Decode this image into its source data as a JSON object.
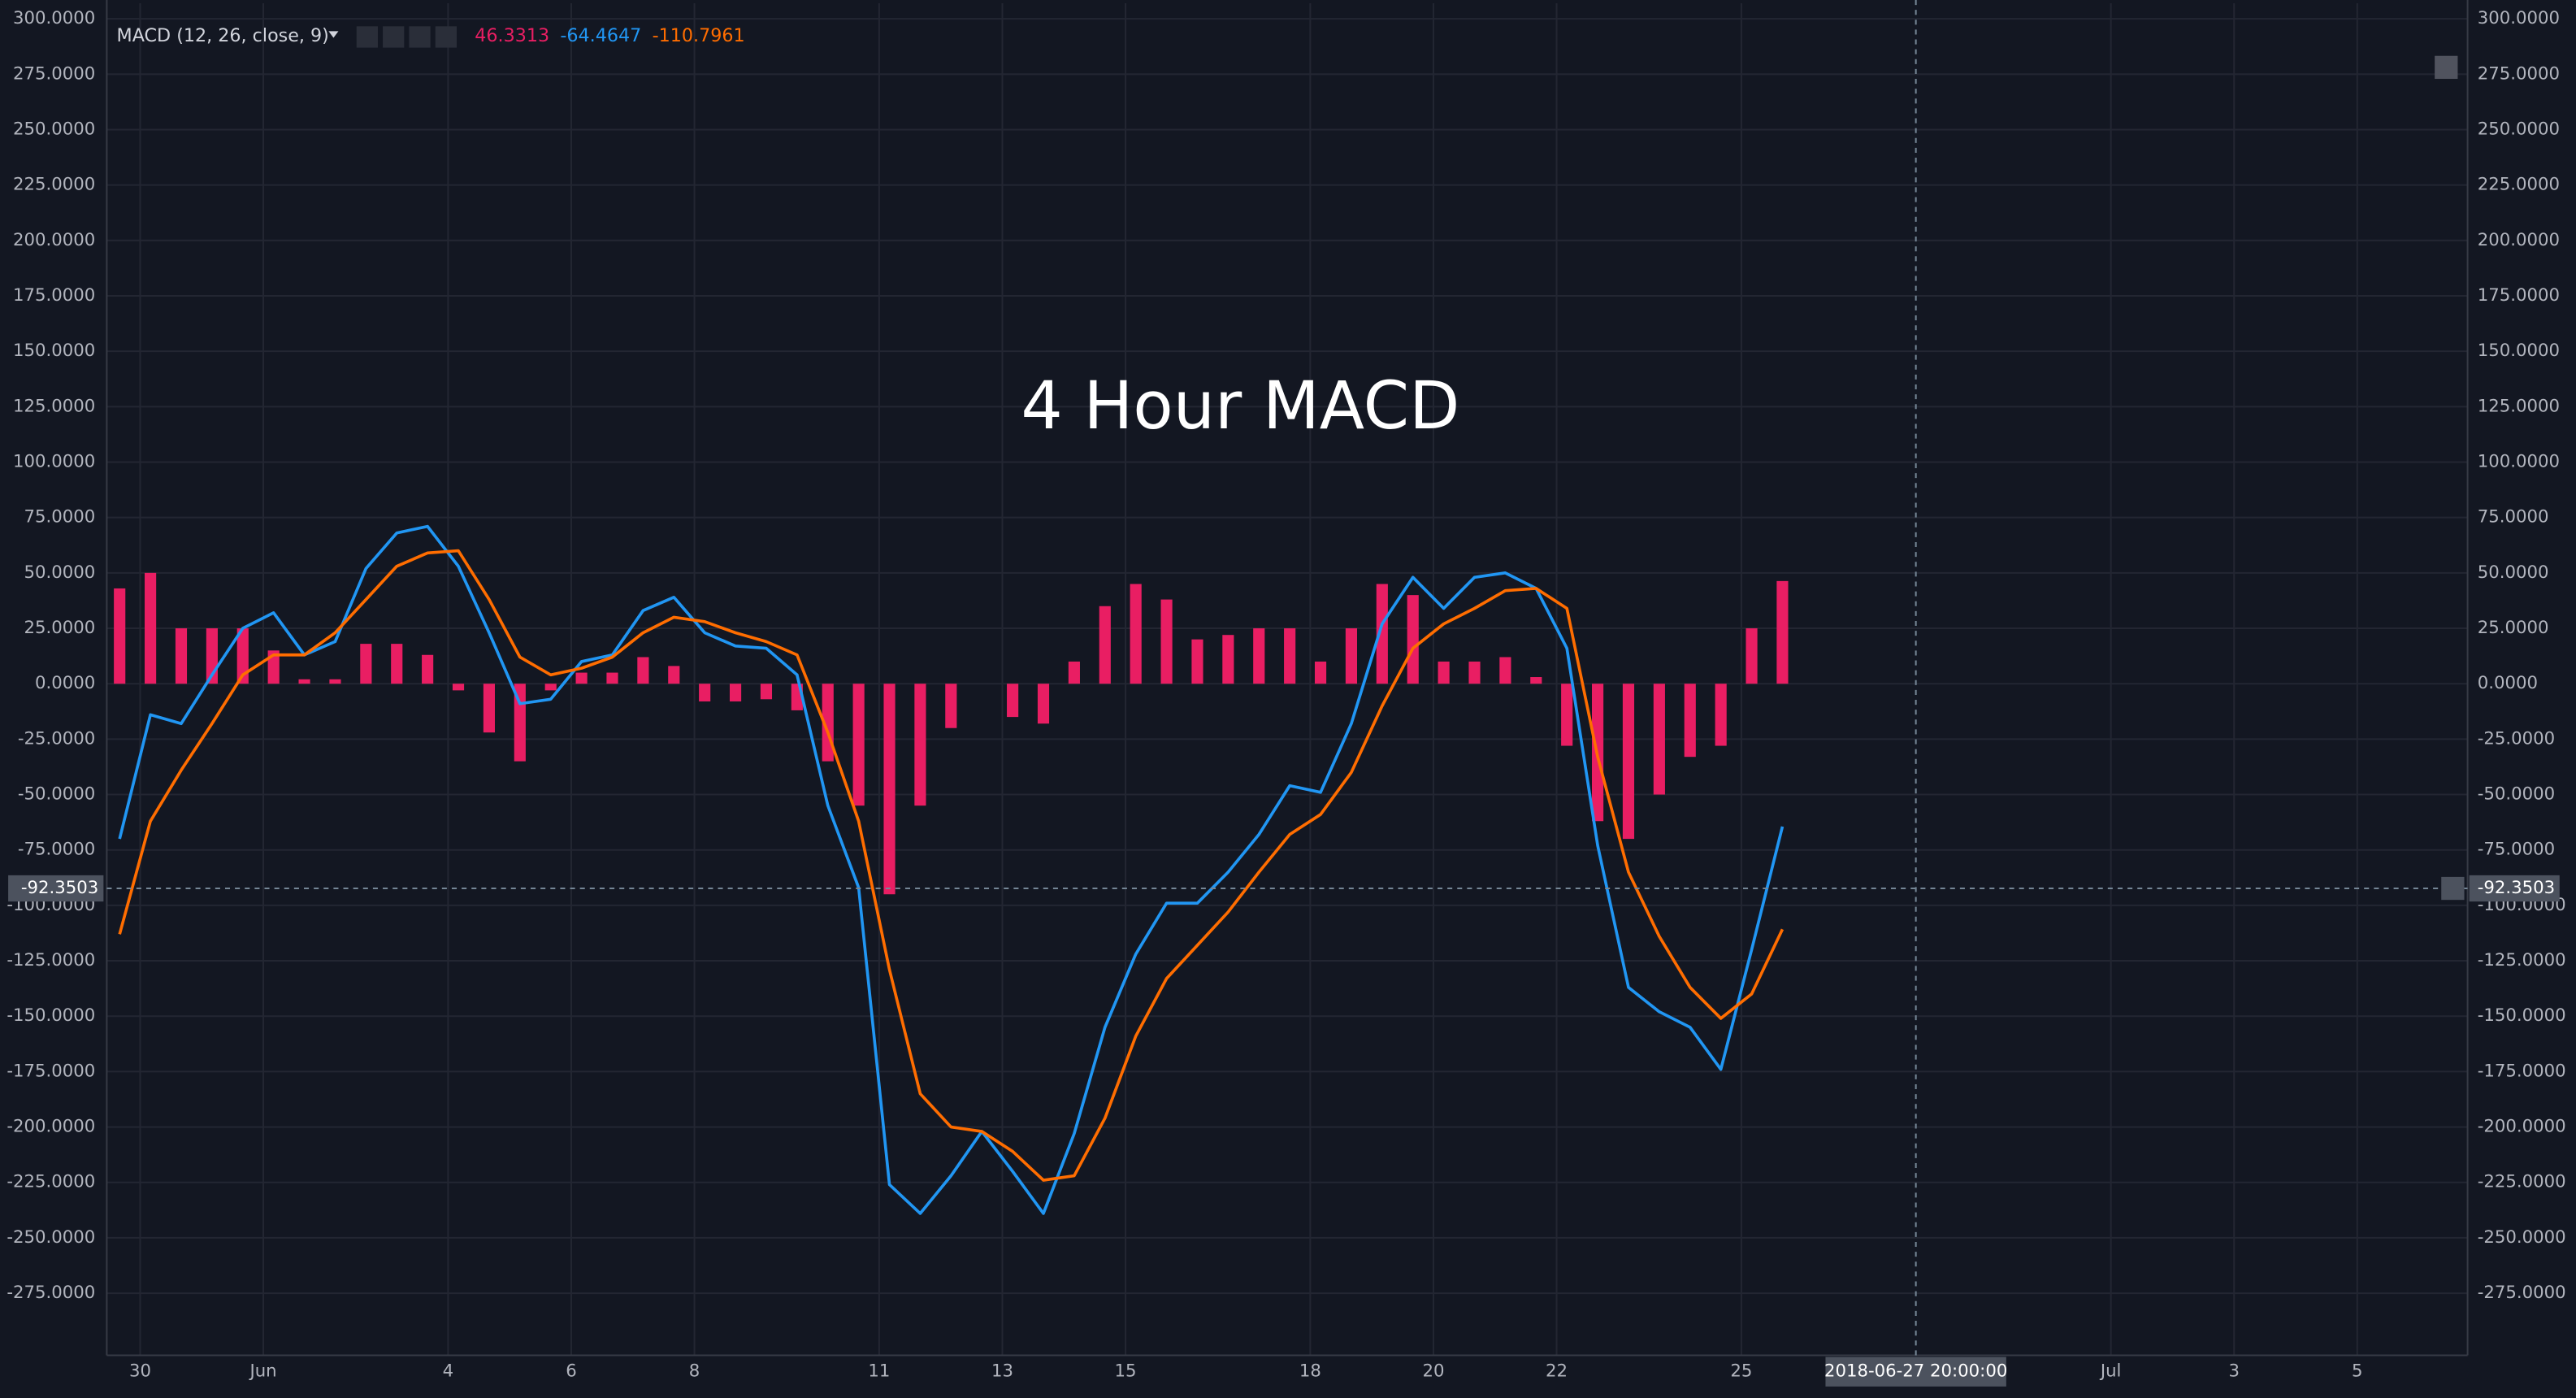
{
  "chart_data": {
    "type": "line",
    "title": "4 Hour MACD",
    "indicator_label": "MACD (12, 26, close, 9)",
    "x": [
      -8,
      4,
      16,
      28,
      40,
      52,
      64,
      76,
      88,
      100,
      112,
      124,
      136,
      148,
      160,
      172,
      184,
      196,
      208,
      220,
      232,
      244,
      256,
      268,
      280,
      292,
      304,
      316,
      328,
      340,
      352,
      364,
      376,
      388,
      400,
      412,
      424,
      436,
      448,
      460,
      472,
      484,
      496,
      508,
      520,
      532,
      544,
      556,
      568,
      580,
      592,
      604,
      616,
      628,
      640
    ],
    "series": [
      {
        "type": "bar",
        "color": "#e91e63",
        "values": [
          43,
          50,
          25,
          25,
          25,
          15,
          2,
          2,
          18,
          18,
          13,
          -3,
          -22,
          -35,
          -3,
          5,
          5,
          12,
          8,
          -8,
          -8,
          -7,
          -12,
          -35,
          -55,
          -95,
          -55,
          -20,
          0,
          -15,
          -18,
          10,
          35,
          45,
          38,
          20,
          22,
          25,
          25,
          10,
          25,
          45,
          40,
          10,
          10,
          12,
          3,
          -28,
          -62,
          -70,
          -50,
          -33,
          -28,
          25,
          46.3313
        ]
      },
      {
        "type": "line",
        "color": "#2196f3",
        "values": [
          -70,
          -14,
          -18,
          4,
          25,
          32,
          13,
          19,
          52,
          68,
          71,
          53,
          23,
          -9,
          -7,
          10,
          13,
          33,
          39,
          23,
          17,
          16,
          4,
          -55,
          -92,
          -226,
          -239,
          -222,
          -202,
          -220,
          -239,
          -203,
          -155,
          -122,
          -99,
          -99,
          -85,
          -68,
          -46,
          -49,
          -18,
          27,
          48,
          34,
          48,
          50,
          43,
          16,
          -73,
          -137,
          -148,
          -155,
          -174,
          -120,
          -64.4647
        ]
      },
      {
        "type": "line",
        "color": "#ff6d00",
        "values": [
          -113,
          -62,
          -39,
          -18,
          4,
          13,
          13,
          23,
          38,
          53,
          59,
          60,
          38,
          12,
          4,
          7,
          12,
          23,
          30,
          28,
          23,
          19,
          13,
          -22,
          -62,
          -129,
          -185,
          -200,
          -202,
          -211,
          -224,
          -222,
          -196,
          -159,
          -133,
          -118,
          -103,
          -85,
          -68,
          -59,
          -40,
          -10,
          16,
          27,
          34,
          42,
          43,
          34,
          -33,
          -85,
          -114,
          -137,
          -151,
          -140,
          -110.7961
        ]
      }
    ],
    "xlim": [
      -13,
      907
    ],
    "ylim": [
      -303,
      307
    ],
    "xticks": [
      {
        "value": 0,
        "label": "30"
      },
      {
        "value": 48,
        "label": "Jun"
      },
      {
        "value": 120,
        "label": "4"
      },
      {
        "value": 168,
        "label": "6"
      },
      {
        "value": 216,
        "label": "8"
      },
      {
        "value": 288,
        "label": "11"
      },
      {
        "value": 336,
        "label": "13"
      },
      {
        "value": 384,
        "label": "15"
      },
      {
        "value": 456,
        "label": "18"
      },
      {
        "value": 504,
        "label": "20"
      },
      {
        "value": 552,
        "label": "22"
      },
      {
        "value": 624,
        "label": "25"
      },
      {
        "value": 768,
        "label": "Jul"
      },
      {
        "value": 816,
        "label": "3"
      },
      {
        "value": 864,
        "label": "5"
      }
    ],
    "yticks": [
      {
        "value": 300,
        "label": "300.0000"
      },
      {
        "value": 275,
        "label": "275.0000"
      },
      {
        "value": 250,
        "label": "250.0000"
      },
      {
        "value": 225,
        "label": "225.0000"
      },
      {
        "value": 200,
        "label": "200.0000"
      },
      {
        "value": 175,
        "label": "175.0000"
      },
      {
        "value": 150,
        "label": "150.0000"
      },
      {
        "value": 125,
        "label": "125.0000"
      },
      {
        "value": 100,
        "label": "100.0000"
      },
      {
        "value": 75,
        "label": "75.0000"
      },
      {
        "value": 50,
        "label": "50.0000"
      },
      {
        "value": 25,
        "label": "25.0000"
      },
      {
        "value": 0,
        "label": "0.0000"
      },
      {
        "value": -25,
        "label": "-25.0000"
      },
      {
        "value": -50,
        "label": "-50.0000"
      },
      {
        "value": -75,
        "label": "-75.0000"
      },
      {
        "value": -100,
        "label": "-100.0000"
      },
      {
        "value": -125,
        "label": "-125.0000"
      },
      {
        "value": -150,
        "label": "-150.0000"
      },
      {
        "value": -175,
        "label": "-175.0000"
      },
      {
        "value": -200,
        "label": "-200.0000"
      },
      {
        "value": -225,
        "label": "-225.0000"
      },
      {
        "value": -250,
        "label": "-250.0000"
      },
      {
        "value": -275,
        "label": "-275.0000"
      }
    ],
    "crosshair": {
      "x": {
        "value": 692,
        "label": "2018-06-27 20:00:00"
      },
      "y": -92.3503
    },
    "grid": true
  }
}
